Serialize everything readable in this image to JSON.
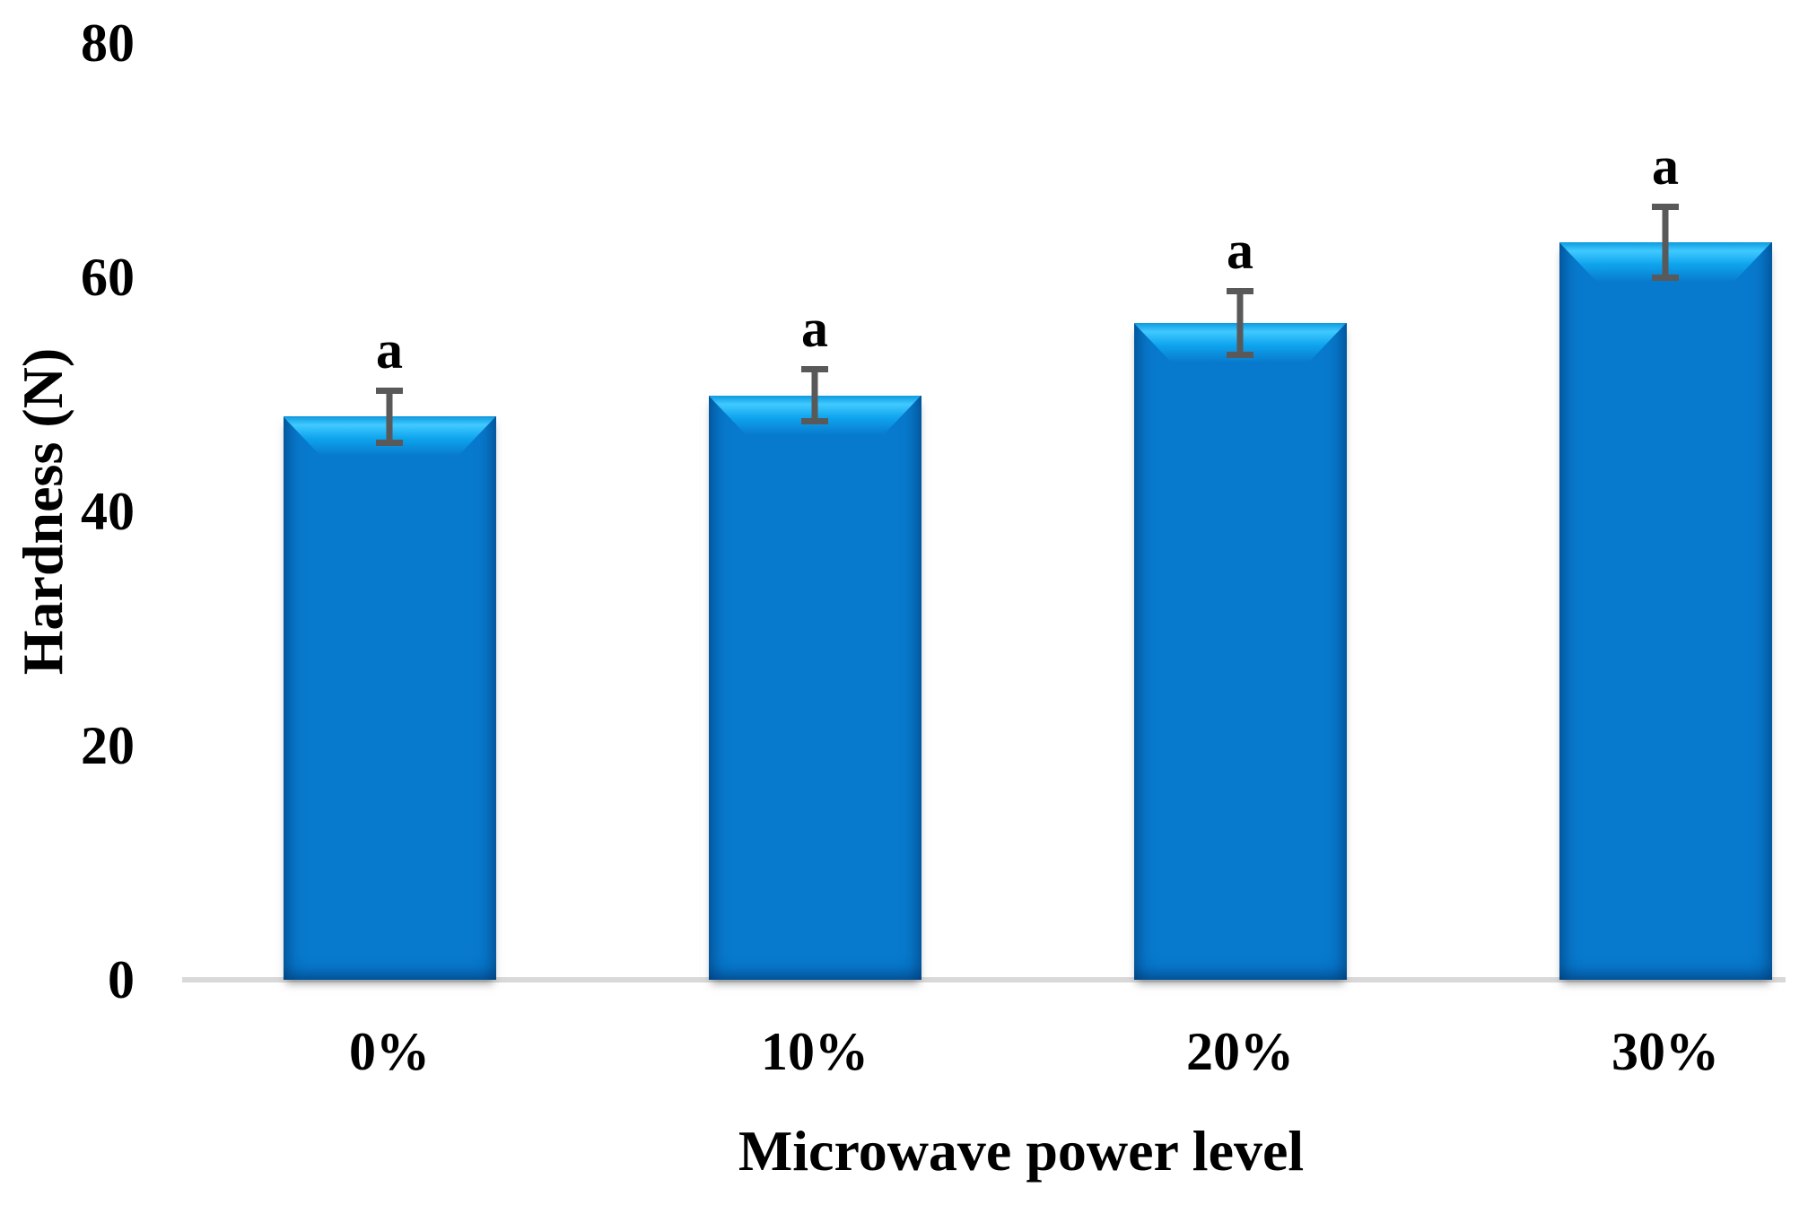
{
  "chart_data": {
    "type": "bar",
    "title": "",
    "xlabel": "Microwave power level",
    "ylabel": "Hardness (N)",
    "categories": [
      "0%",
      "10%",
      "20%",
      "30%"
    ],
    "values": [
      48.1,
      49.9,
      56.1,
      63.0
    ],
    "error_bars": [
      2.5,
      2.5,
      3.0,
      3.3
    ],
    "significance_letters": [
      "a",
      "a",
      "a",
      "a"
    ],
    "ylim": [
      0,
      80
    ],
    "yticks": [
      "0",
      "20",
      "40",
      "60",
      "80"
    ],
    "ytick_values": [
      0,
      20,
      40,
      60,
      80
    ],
    "grid": false,
    "legend": false,
    "bar_color": "#087ace",
    "bar_highlight": "#41c9ff",
    "error_bar_color": "#595959",
    "axis_line_color": "#d9d9d9",
    "text_color": "#000000"
  }
}
